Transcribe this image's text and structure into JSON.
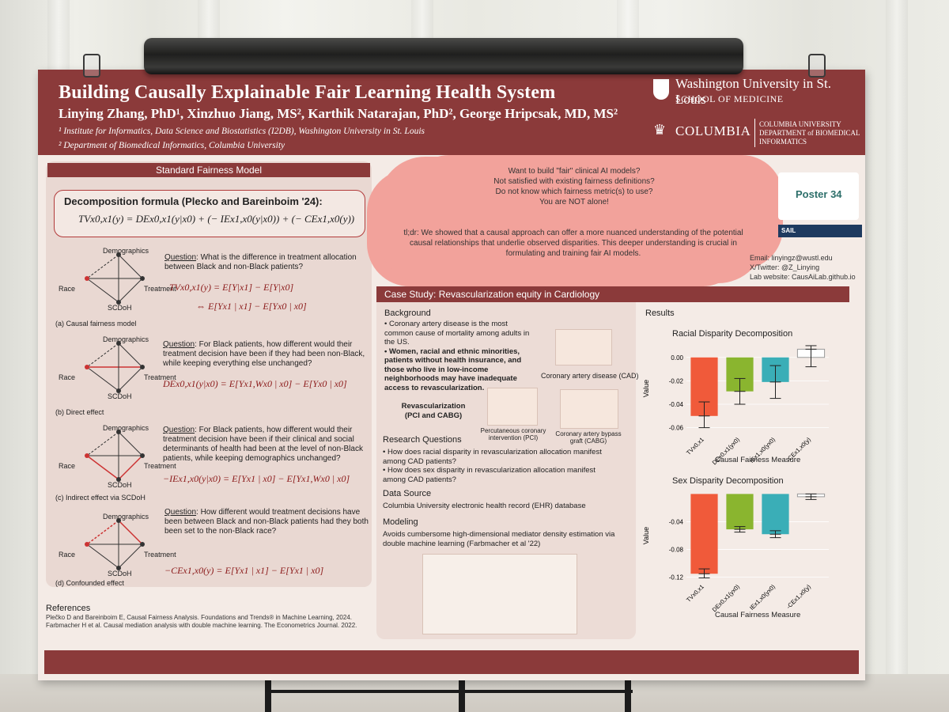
{
  "poster": {
    "title": "Building Causally Explainable Fair Learning Health System",
    "authors": "Linying Zhang, PhD¹, Xinzhuo Jiang, MS², Karthik Natarajan, PhD², George Hripcsak, MD, MS²",
    "affiliation1": "¹ Institute for Informatics, Data Science and Biostatistics (I2DB), Washington University in St. Louis",
    "affiliation2": "² Department of Biomedical Informatics, Columbia University",
    "logo_wu_line1": "Washington University in St. Louis",
    "logo_wu_line2": "SCHOOL OF MEDICINE",
    "logo_col_name": "COLUMBIA",
    "logo_col_dept": "COLUMBIA UNIVERSITY DEPARTMENT of BIOMEDICAL INFORMATICS"
  },
  "left": {
    "header": "Standard Fairness Model",
    "formula_heading": "Decomposition formula (Plecko and Bareinboim '24):",
    "formula": "TVx0,x1(y) = DEx0,x1(y|x0) + (− IEx1,x0(y|x0)) + (− CEx1,x0(y))",
    "panels": [
      {
        "question_label": "Question",
        "question": ": What is the difference in treatment allocation between Black and non-Black patients?",
        "eq1": "TVx0,x1(y) = E[Y|x1] − E[Y|x0]",
        "eq2": "⇔ E[Yx1 | x1] − E[Yx0 | x0]",
        "caption": "(a) Causal fairness model"
      },
      {
        "question_label": "Question",
        "question": ": For Black patients, how different would their treatment decision have been if they had been non-Black, while keeping everything else unchanged?",
        "eq1": "DEx0,x1(y|x0) = E[Yx1,Wx0 | x0] − E[Yx0 | x0]",
        "caption": "(b) Direct effect"
      },
      {
        "question_label": "Question",
        "question": ": For Black patients, how different would their treatment decision have been if their clinical and social determinants of health had been at the level of non-Black patients, while keeping demographics unchanged?",
        "eq1": "−IEx1,x0(y|x0) = E[Yx1 | x0] − E[Yx1,Wx0 | x0]",
        "caption": "(c) Indirect effect via SCDoH"
      },
      {
        "question_label": "Question",
        "question": ": How different would treatment decisions have been between Black and non-Black patients had they both been set to the non-Black race?",
        "eq1": "−CEx1,x0(y) = E[Yx1 | x1] − E[Yx1 | x0]",
        "caption": "(d) Confounded effect"
      }
    ],
    "graph_labels": {
      "z": "Demographics",
      "x": "Race",
      "y": "Treatment",
      "w": "SCDoH",
      "zl": "Z",
      "xl": "X",
      "yl": "Y",
      "wl": "W"
    },
    "references_heading": "References",
    "ref1": "Plečko D and Bareinboim E, Causal Fairness Analysis. Foundations and Trends® in Machine Learning, 2024.",
    "ref2": "Farbmacher H et al. Causal mediation analysis with double machine learning. The Econometrics Journal. 2022."
  },
  "cloud": {
    "l1": "Want to build \"fair\" clinical AI models?",
    "l2": "Not satisfied with existing fairness definitions?",
    "l3": "Do not know which fairness metric(s) to use?",
    "l4": "You are NOT alone!",
    "tldr": "tl;dr: We showed that a causal approach can offer a more nuanced understanding of the potential causal relationships that underlie observed disparities. This deeper understanding is crucial in formulating and training fair AI models."
  },
  "poster_number": "Poster 34",
  "sail_label": "SAIL",
  "contact": {
    "email": "Email: linyingz@wustl.edu",
    "twitter": "X/Twitter: @Z_Linying",
    "website": "Lab website: CausAiLab.github.io"
  },
  "case": {
    "header": "Case Study: Revascularization equity in Cardiology",
    "background_h": "Background",
    "b1": "Coronary artery disease is the most common cause of mortality among adults in the US.",
    "b2": "Women, racial and ethnic minorities, patients without health insurance, and those who live in low-income neighborhoods may have inadequate access to revascularization.",
    "cad_caption": "Coronary artery disease (CAD)",
    "revasc": "Revascularization (PCI and CABG)",
    "pci_caption": "Percutaneous coronary intervention (PCI)",
    "cabg_caption": "Coronary artery bypass graft (CABG)",
    "rq_h": "Research Questions",
    "rq1": "How does racial disparity in revascularization allocation manifest among CAD patients?",
    "rq2": "How does sex disparity in revascularization allocation manifest among CAD patients?",
    "ds_h": "Data Source",
    "ds": "Columbia University electronic health record (EHR) database",
    "mod_h": "Modeling",
    "mod": "Avoids cumbersome high-dimensional mediator density estimation via double machine learning (Farbmacher et al '22)",
    "results_h": "Results"
  },
  "chart_data": [
    {
      "type": "bar",
      "title": "Racial Disparity Decomposition",
      "xlabel": "Causal Fairness Measure",
      "ylabel": "Value",
      "categories": [
        "TVx0,x1",
        "DEx0,x1(yx0)",
        "IEx1,x0(yx0)",
        "-CEx1,x0(y)"
      ],
      "values": [
        -0.05,
        -0.029,
        -0.021,
        0.007
      ],
      "error_low": [
        -0.06,
        -0.04,
        -0.035,
        -0.008
      ],
      "error_high": [
        -0.038,
        -0.018,
        -0.007,
        0.01
      ],
      "yticks": [
        "0.00",
        "-0.02",
        "-0.04",
        "-0.06"
      ],
      "ylim": [
        -0.065,
        0.012
      ],
      "colors": [
        "#f05a3a",
        "#8ab52f",
        "#3aaeb7",
        "#ffffff"
      ]
    },
    {
      "type": "bar",
      "title": "Sex Disparity Decomposition",
      "xlabel": "Causal Fairness Measure",
      "ylabel": "Value",
      "categories": [
        "TVx0,x1",
        "DEx0,x1(yx0)",
        "IEx1,x0(yx0)",
        "-CEx1,x0(y)"
      ],
      "values": [
        -0.115,
        -0.051,
        -0.058,
        -0.004
      ],
      "error_low": [
        -0.121,
        -0.055,
        -0.063,
        -0.008
      ],
      "error_high": [
        -0.108,
        -0.047,
        -0.053,
        0.0
      ],
      "yticks": [
        "-0.04",
        "-0.08",
        "-0.12"
      ],
      "ylim": [
        -0.125,
        0.005
      ],
      "colors": [
        "#f05a3a",
        "#8ab52f",
        "#3aaeb7",
        "#ffffff"
      ]
    }
  ]
}
